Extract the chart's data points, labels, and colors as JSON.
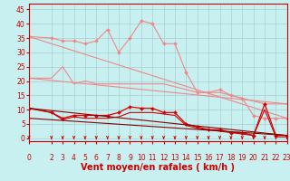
{
  "background_color": "#c8f0f0",
  "grid_color": "#a8d0d0",
  "x_ticks": [
    0,
    2,
    3,
    4,
    5,
    6,
    7,
    8,
    9,
    10,
    11,
    12,
    13,
    14,
    15,
    16,
    17,
    18,
    19,
    20,
    21,
    22,
    23
  ],
  "xlabel": "Vent moyen/en rafales ( km/h )",
  "yticks": [
    0,
    5,
    10,
    15,
    20,
    25,
    30,
    35,
    40,
    45
  ],
  "ylim": [
    -1,
    47
  ],
  "xlim": [
    0,
    23
  ],
  "series": [
    {
      "name": "line1_salmon_marked",
      "x": [
        0,
        2,
        3,
        4,
        5,
        6,
        7,
        8,
        9,
        10,
        11,
        12,
        13,
        14,
        15,
        16,
        17,
        18,
        19,
        20,
        21,
        22,
        23
      ],
      "y": [
        35.5,
        35,
        34,
        34,
        33,
        34,
        38,
        30,
        35,
        41,
        40,
        33,
        33,
        23,
        16,
        16,
        17,
        15,
        14,
        8,
        7,
        7,
        7
      ],
      "color": "#f08888",
      "lw": 0.8,
      "marker": "D",
      "ms": 2.0
    },
    {
      "name": "line2_salmon_plain",
      "x": [
        0,
        2,
        3,
        4,
        5,
        6,
        7,
        8,
        9,
        10,
        11,
        12,
        13,
        14,
        15,
        16,
        17,
        18,
        19,
        20,
        21,
        22,
        23
      ],
      "y": [
        21,
        21,
        25,
        19,
        20,
        19,
        19,
        19,
        19,
        19,
        19,
        19,
        18,
        17,
        16,
        16,
        16,
        15,
        14,
        13,
        12,
        12,
        12
      ],
      "color": "#f08888",
      "lw": 0.8,
      "marker": null,
      "ms": 0
    },
    {
      "name": "line3_salmon_diag1",
      "x": [
        0,
        23
      ],
      "y": [
        35.5,
        7
      ],
      "color": "#f08888",
      "lw": 0.8,
      "marker": null,
      "ms": 0
    },
    {
      "name": "line4_salmon_diag2",
      "x": [
        0,
        23
      ],
      "y": [
        21,
        12
      ],
      "color": "#f08888",
      "lw": 0.8,
      "marker": null,
      "ms": 0
    },
    {
      "name": "line5_red_marked",
      "x": [
        0,
        2,
        3,
        4,
        5,
        6,
        7,
        8,
        9,
        10,
        11,
        12,
        13,
        14,
        15,
        16,
        17,
        18,
        19,
        20,
        21,
        22,
        23
      ],
      "y": [
        10.5,
        9,
        7,
        8,
        8,
        8,
        8,
        9,
        11,
        10.5,
        10.5,
        9,
        9,
        5,
        4,
        3,
        3,
        2,
        2,
        1,
        12,
        1,
        1
      ],
      "color": "#dd0000",
      "lw": 0.9,
      "marker": "D",
      "ms": 2.0
    },
    {
      "name": "line6_red_plain",
      "x": [
        0,
        2,
        3,
        4,
        5,
        6,
        7,
        8,
        9,
        10,
        11,
        12,
        13,
        14,
        15,
        16,
        17,
        18,
        19,
        20,
        21,
        22,
        23
      ],
      "y": [
        10.5,
        9,
        6.5,
        7.5,
        7,
        7,
        7,
        7.5,
        9,
        9,
        9,
        8.5,
        8,
        4.5,
        3.5,
        3,
        2.5,
        2,
        1.5,
        1,
        10,
        0.5,
        0.5
      ],
      "color": "#cc0000",
      "lw": 0.8,
      "marker": null,
      "ms": 0
    },
    {
      "name": "line7_dark_diag1",
      "x": [
        0,
        23
      ],
      "y": [
        10.5,
        1
      ],
      "color": "#880000",
      "lw": 0.8,
      "marker": null,
      "ms": 0
    },
    {
      "name": "line8_dark_diag2",
      "x": [
        0,
        23
      ],
      "y": [
        7,
        1
      ],
      "color": "#880000",
      "lw": 0.8,
      "marker": null,
      "ms": 0
    }
  ],
  "arrow_color": "#cc0000",
  "axis_color": "#cc0000",
  "tick_fontsize": 5.5,
  "axis_fontsize": 7.0
}
